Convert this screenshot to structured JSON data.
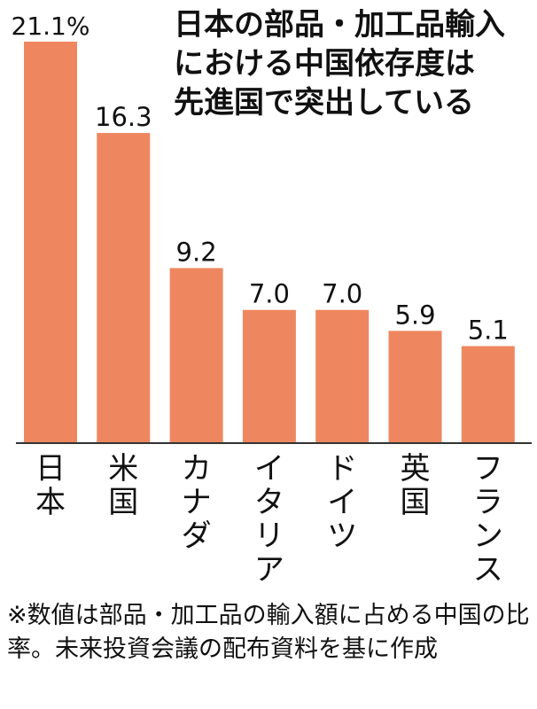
{
  "title_lines": [
    "日本の部品・加工品輸入",
    "における中国依存度は",
    "先進国で突出している"
  ],
  "note": "※数値は部品・加工品の輸入額に占める中国の比率。未来投資会議の配布資料を基に作成",
  "colors": {
    "bar": "#ee875f",
    "text": "#111111",
    "axis": "#333333"
  },
  "chart_data": {
    "type": "bar",
    "title": "日本の部品・加工品輸入における中国依存度は先進国で突出している",
    "categories": [
      "日本",
      "米国",
      "カナダ",
      "イタリア",
      "ドイツ",
      "英国",
      "フランス"
    ],
    "values": [
      21.1,
      16.3,
      9.2,
      7.0,
      7.0,
      5.9,
      5.1
    ],
    "value_labels": [
      "21.1%",
      "16.3",
      "9.2",
      "7.0",
      "7.0",
      "5.9",
      "5.1"
    ],
    "ylim": [
      0,
      21.1
    ],
    "grid": false,
    "legend": "none"
  }
}
